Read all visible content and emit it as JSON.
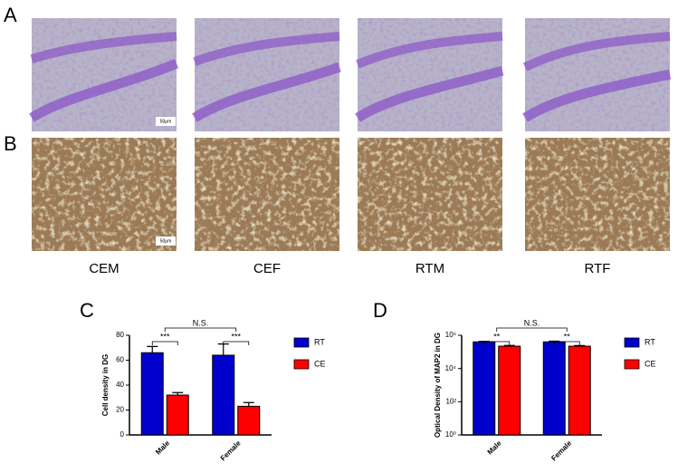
{
  "panels": {
    "a": "A",
    "b": "B",
    "c": "C",
    "d": "D"
  },
  "columns": [
    "CEM",
    "CEF",
    "RTM",
    "RTF"
  ],
  "scale_bars": {
    "a": "50μm",
    "b": "50μm"
  },
  "chart_data": [
    {
      "type": "bar",
      "ylabel": "Cell density in DG",
      "categories": [
        "Male",
        "Female"
      ],
      "series": [
        {
          "name": "RT",
          "color": "#0000cc",
          "values": [
            66,
            64
          ],
          "errors": [
            5,
            9
          ]
        },
        {
          "name": "CE",
          "color": "#ff0000",
          "values": [
            32,
            23
          ],
          "errors": [
            2,
            3
          ]
        }
      ],
      "ylim": [
        0,
        80
      ],
      "yticks": [
        0,
        20,
        40,
        60,
        80
      ],
      "log": false,
      "legend": "right",
      "annotations": [
        "***",
        "***",
        "N.S."
      ]
    },
    {
      "type": "bar",
      "ylabel": "Optical Density of MAP2 in DG",
      "categories": [
        "Male",
        "Female"
      ],
      "series": [
        {
          "name": "RT",
          "color": "#0000cc",
          "values": [
            400000,
            400000
          ],
          "errors": [
            30000,
            40000
          ]
        },
        {
          "name": "CE",
          "color": "#ff0000",
          "values": [
            220000,
            220000
          ],
          "errors": [
            25000,
            20000
          ]
        }
      ],
      "ylim": [
        1,
        1000000
      ],
      "yticks": [
        {
          "value": 1,
          "label": "10⁰"
        },
        {
          "value": 100,
          "label": "10²"
        },
        {
          "value": 10000,
          "label": "10⁴"
        },
        {
          "value": 1000000,
          "label": "10⁶"
        }
      ],
      "log": true,
      "legend": "right",
      "annotations": [
        "**",
        "**",
        "N.S."
      ]
    }
  ]
}
